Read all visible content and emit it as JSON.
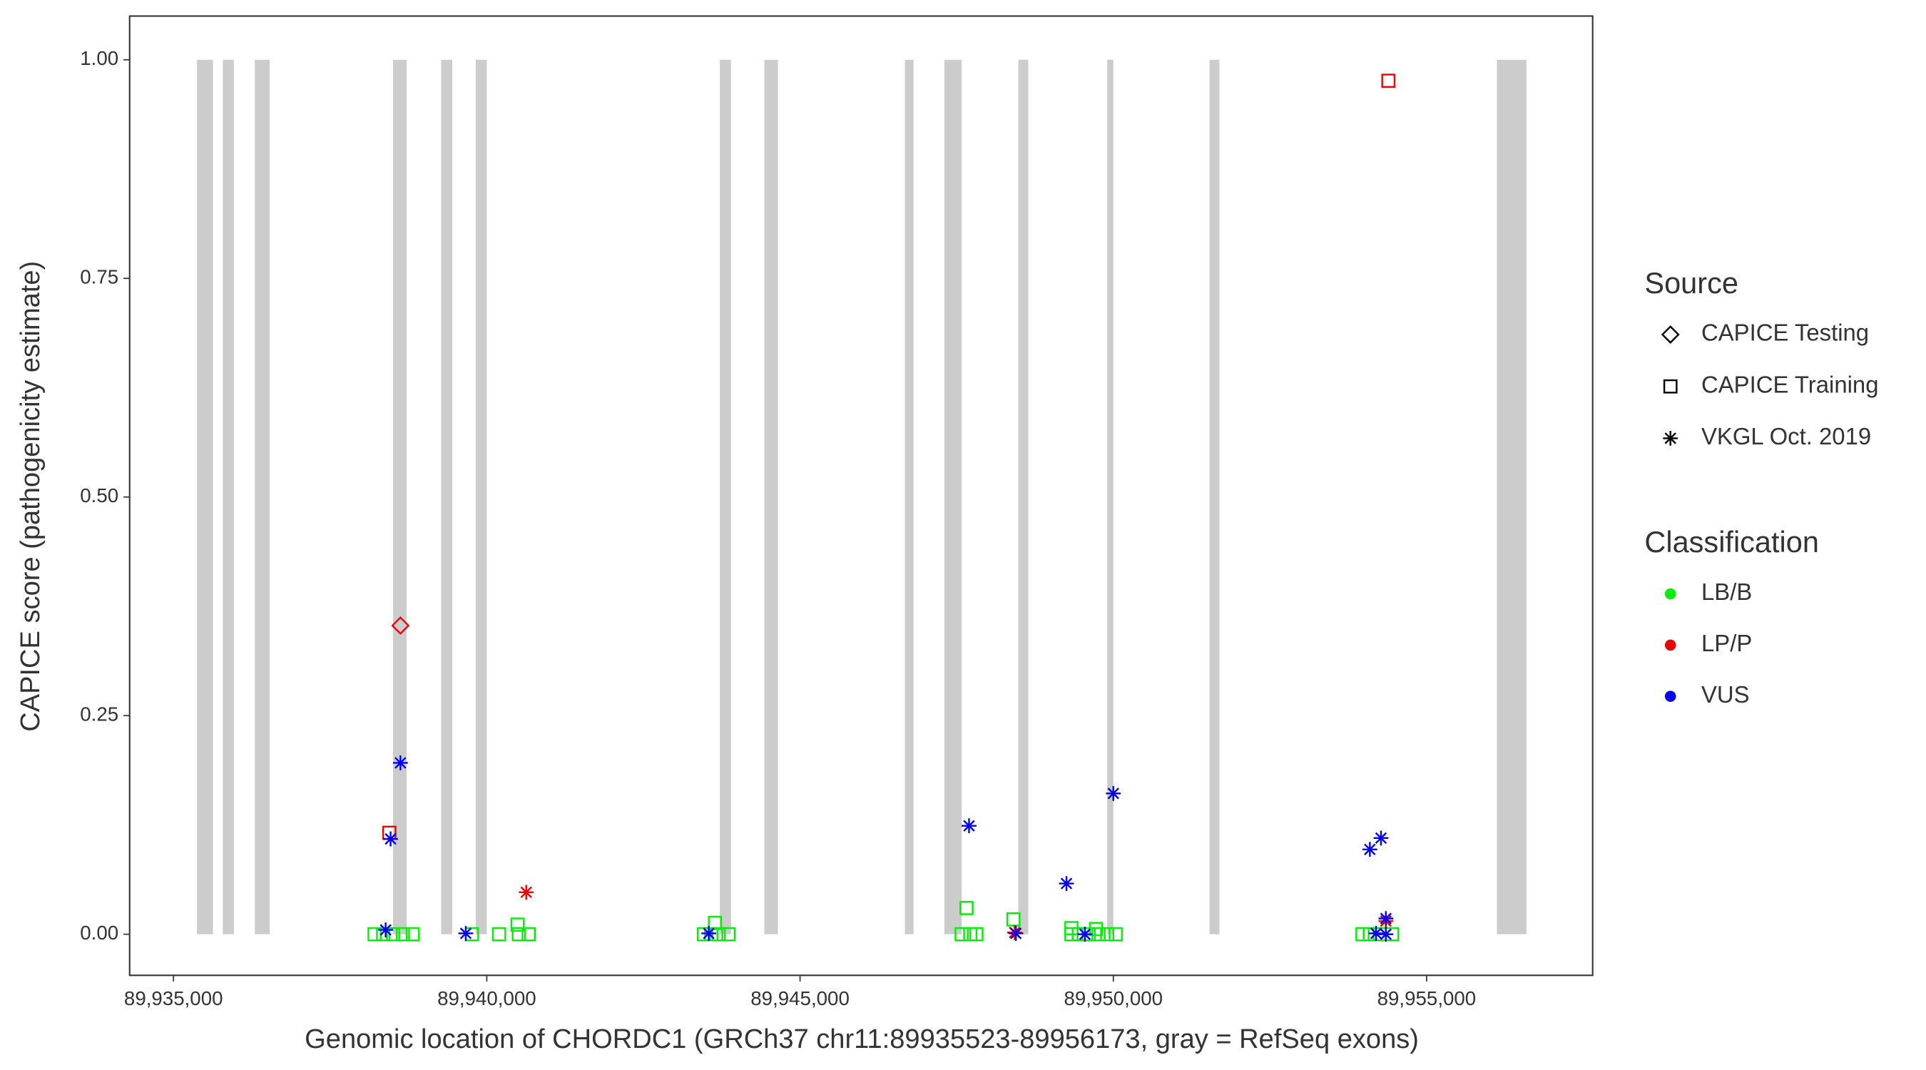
{
  "chart_data": {
    "type": "scatter",
    "x_label": "Genomic location of CHORDC1 (GRCh37 chr11:89935523-89956173, gray = RefSeq exons)",
    "y_label": "CAPICE score (pathogenicity estimate)",
    "xlim": [
      89934300,
      89957650
    ],
    "ylim": [
      -0.047,
      1.05
    ],
    "xticks": [
      {
        "value": 89935000,
        "label": "89,935,000"
      },
      {
        "value": 89940000,
        "label": "89,940,000"
      },
      {
        "value": 89945000,
        "label": "89,945,000"
      },
      {
        "value": 89950000,
        "label": "89,950,000"
      },
      {
        "value": 89955000,
        "label": "89,955,000"
      }
    ],
    "yticks": [
      {
        "value": 0,
        "label": "0.00"
      },
      {
        "value": 0.25,
        "label": "0.25"
      },
      {
        "value": 0.5,
        "label": "0.50"
      },
      {
        "value": 0.75,
        "label": "0.75"
      },
      {
        "value": 1,
        "label": "1.00"
      }
    ],
    "grid": false,
    "exon_color": "#cccccc",
    "exons": [
      {
        "start": 89935374,
        "end": 89935630
      },
      {
        "start": 89935787,
        "end": 89935965
      },
      {
        "start": 89936299,
        "end": 89936535
      },
      {
        "start": 89938504,
        "end": 89938720
      },
      {
        "start": 89939272,
        "end": 89939449
      },
      {
        "start": 89939823,
        "end": 89940000
      },
      {
        "start": 89943720,
        "end": 89943898
      },
      {
        "start": 89944429,
        "end": 89944646
      },
      {
        "start": 89946673,
        "end": 89946811
      },
      {
        "start": 89947303,
        "end": 89947579
      },
      {
        "start": 89948484,
        "end": 89948642
      },
      {
        "start": 89949902,
        "end": 89950000
      },
      {
        "start": 89951535,
        "end": 89951693
      },
      {
        "start": 89956122,
        "end": 89956594
      }
    ],
    "legend_source": {
      "title": "Source",
      "items": [
        {
          "label": "CAPICE Testing",
          "shape": "diamond"
        },
        {
          "label": "CAPICE Training",
          "shape": "square"
        },
        {
          "label": "VKGL Oct. 2019",
          "shape": "asterisk"
        }
      ]
    },
    "legend_classification": {
      "title": "Classification",
      "items": [
        {
          "label": "LB/B",
          "color": "#00ee00"
        },
        {
          "label": "LP/P",
          "color": "#ee0000"
        },
        {
          "label": "VUS",
          "color": "#0000ee"
        }
      ]
    },
    "series": [
      {
        "source": "CAPICE Training",
        "classification": "LB/B",
        "x": [
          89938209,
          89938346,
          89938504,
          89938661,
          89938819,
          89939764,
          89940197,
          89940512,
          89940669,
          89943465,
          89943583,
          89943701,
          89943858,
          89947579,
          89947717,
          89947815,
          89949331,
          89949449,
          89949606,
          89949764,
          89949902,
          89950039,
          89953976,
          89954094,
          89954252,
          89954449,
          89940492,
          89943642,
          89947657,
          89948406,
          89949331,
          89949724
        ],
        "values": [
          0,
          0,
          0,
          0,
          0,
          0,
          0,
          0,
          0,
          0,
          0,
          0,
          0,
          0,
          0,
          0,
          0,
          0,
          0,
          0,
          0,
          0,
          0,
          0,
          0,
          0,
          0.011,
          0.013,
          0.03,
          0.017,
          0.007,
          0.006
        ]
      },
      {
        "source": "CAPICE Testing",
        "classification": "LP/P",
        "x": [
          89938622
        ],
        "values": [
          0.353
        ]
      },
      {
        "source": "CAPICE Training",
        "classification": "LP/P",
        "x": [
          89954390,
          89938445
        ],
        "values": [
          0.976,
          0.116
        ]
      },
      {
        "source": "VKGL Oct. 2019",
        "classification": "LP/P",
        "x": [
          89940630,
          89948425,
          89954350
        ],
        "values": [
          0.048,
          0.002,
          0.015
        ]
      },
      {
        "source": "VKGL Oct. 2019",
        "classification": "VUS",
        "x": [
          89938622,
          89938465,
          89938386,
          89939665,
          89943543,
          89947697,
          89948445,
          89949252,
          89949547,
          89950000,
          89954094,
          89954272,
          89954193,
          89954350,
          89954350
        ],
        "values": [
          0.196,
          0.109,
          0.005,
          0.001,
          0.001,
          0.124,
          0.001,
          0.058,
          0,
          0.161,
          0.097,
          0.11,
          0.001,
          0.018,
          0
        ]
      }
    ]
  }
}
